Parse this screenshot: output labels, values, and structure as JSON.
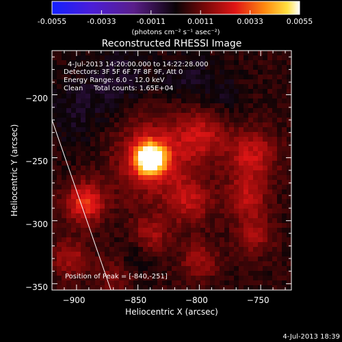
{
  "colorbar": {
    "ticks": [
      "-0.0055",
      "-0.0033",
      "-0.0011",
      "0.0011",
      "0.0033",
      "0.0055"
    ],
    "unit_label": "(photons cm⁻² s⁻¹ asec⁻²)"
  },
  "chart_data": {
    "type": "heatmap",
    "title": "Reconstructed RHESSI Image",
    "xlabel": "Heliocentric X (arcsec)",
    "ylabel": "Heliocentric Y (arcsec)",
    "xlim": [
      -920,
      -725
    ],
    "ylim": [
      -355,
      -165
    ],
    "x_ticks": [
      -900,
      -850,
      -800,
      -750
    ],
    "y_ticks": [
      -200,
      -250,
      -300,
      -350
    ],
    "x_tick_labels": [
      "−900",
      "−850",
      "−800",
      "−750"
    ],
    "y_tick_labels": [
      "−200",
      "−250",
      "−300",
      "−350"
    ],
    "colorbar_range": [
      -0.0055,
      0.0055
    ],
    "colormap": "purple-black-red-yellow-white",
    "annotations": [
      "4-Jul-2013 14:20:00.000 to 14:22:28.000",
      "Detectors: 3F 5F 6F 7F 8F 9F, Att 0",
      "Energy Range: 6.0 – 12.0 keV",
      "Clean     Total counts: 1.65E+04"
    ],
    "peak_label": "Position of Peak = [-840,-251]",
    "peak": {
      "x": -840,
      "y": -251,
      "value": 0.0055
    },
    "blobs": [
      {
        "x": -840,
        "y": -251,
        "peak": 0.0055,
        "sigma": 9
      },
      {
        "x": -837,
        "y": -250,
        "peak": 0.0018,
        "sigma": 24
      },
      {
        "x": -893,
        "y": -286,
        "peak": 0.0026,
        "sigma": 11
      },
      {
        "x": -798,
        "y": -232,
        "peak": 0.0016,
        "sigma": 14
      },
      {
        "x": -757,
        "y": -248,
        "peak": 0.0019,
        "sigma": 14
      },
      {
        "x": -762,
        "y": -282,
        "peak": 0.0017,
        "sigma": 12
      },
      {
        "x": -808,
        "y": -285,
        "peak": 0.0015,
        "sigma": 13
      },
      {
        "x": -840,
        "y": -312,
        "peak": 0.0014,
        "sigma": 11
      },
      {
        "x": -905,
        "y": -330,
        "peak": 0.0014,
        "sigma": 11
      },
      {
        "x": -800,
        "y": -332,
        "peak": 0.0013,
        "sigma": 11
      },
      {
        "x": -755,
        "y": -312,
        "peak": 0.0013,
        "sigma": 11
      },
      {
        "x": -870,
        "y": -345,
        "peak": 0.0009,
        "sigma": 10
      },
      {
        "x": -900,
        "y": -215,
        "peak": -0.0007,
        "sigma": 20
      },
      {
        "x": -865,
        "y": -186,
        "peak": -0.0008,
        "sigma": 18
      },
      {
        "x": -810,
        "y": -186,
        "peak": -0.0007,
        "sigma": 16
      },
      {
        "x": -850,
        "y": -325,
        "peak": -0.0006,
        "sigma": 10
      },
      {
        "x": -780,
        "y": -200,
        "peak": -0.0005,
        "sigma": 12
      }
    ],
    "limb_line": [
      [
        -920,
        -220
      ],
      [
        -872,
        -355
      ]
    ]
  },
  "footer": {
    "date": "4-Jul-2013 18:39"
  }
}
